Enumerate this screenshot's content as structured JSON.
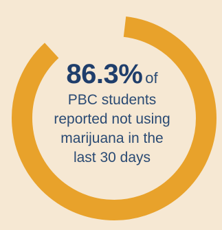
{
  "chart_data": {
    "type": "pie",
    "values": [
      86.3,
      13.7
    ],
    "colors": {
      "arc": "#e8a22b",
      "gap": "#f6e8d3",
      "text": "#2a4a73"
    }
  },
  "callout": {
    "value": "86.3%",
    "suffix": "of",
    "lines": [
      "PBC students",
      "reported not using",
      "marijuana in the",
      "last 30 days"
    ]
  }
}
